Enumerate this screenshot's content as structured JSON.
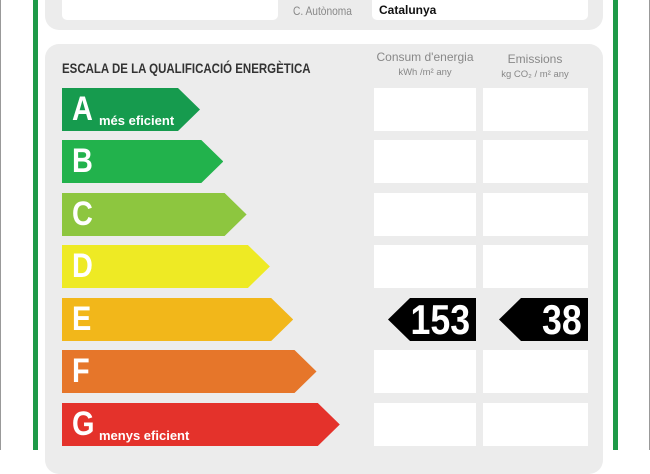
{
  "header": {
    "region_label": "C. Autònoma",
    "region_value": "Catalunya"
  },
  "scale": {
    "title": "ESCALA DE LA QUALIFICACIÓ ENERGÈTICA",
    "energy_header": "Consum d'energia",
    "energy_unit": "kWh /m² any",
    "emissions_header": "Emissions",
    "emissions_unit": "kg CO₂ / m² any",
    "classes": [
      {
        "letter": "A",
        "label": "més eficient",
        "color": "#169b4e"
      },
      {
        "letter": "B",
        "label": "",
        "color": "#22b24c"
      },
      {
        "letter": "C",
        "label": "",
        "color": "#8dc63f"
      },
      {
        "letter": "D",
        "label": "",
        "color": "#eeea24"
      },
      {
        "letter": "E",
        "label": "",
        "color": "#f2b71a"
      },
      {
        "letter": "F",
        "label": "",
        "color": "#e6762a"
      },
      {
        "letter": "G",
        "label": "menys eficient",
        "color": "#e4322b"
      }
    ],
    "rating_class": "E",
    "energy_value": "153",
    "emissions_value": "38"
  }
}
